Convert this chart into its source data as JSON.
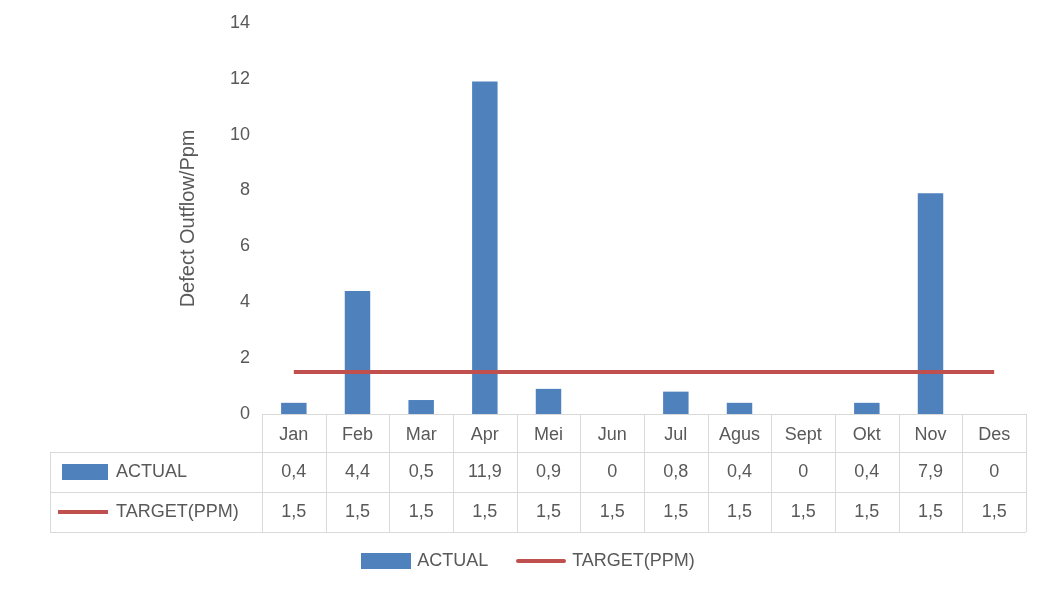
{
  "chart_data": {
    "type": "bar",
    "ylabel": "Defect Outflow/Ppm",
    "categories": [
      "Jan",
      "Feb",
      "Mar",
      "Apr",
      "Mei",
      "Jun",
      "Jul",
      "Agus",
      "Sept",
      "Okt",
      "Nov",
      "Des"
    ],
    "series": [
      {
        "name": "ACTUAL",
        "color": "#4f81bd",
        "values": [
          0.4,
          4.4,
          0.5,
          11.9,
          0.9,
          0,
          0.8,
          0.4,
          0,
          0.4,
          7.9,
          0
        ],
        "value_labels": [
          "0,4",
          "4,4",
          "0,5",
          "11,9",
          "0,9",
          "0",
          "0,8",
          "0,4",
          "0",
          "0,4",
          "7,9",
          "0"
        ]
      },
      {
        "name": "TARGET(PPM)",
        "type": "line",
        "color": "#c0504d",
        "values": [
          1.5,
          1.5,
          1.5,
          1.5,
          1.5,
          1.5,
          1.5,
          1.5,
          1.5,
          1.5,
          1.5,
          1.5
        ],
        "value_labels": [
          "1,5",
          "1,5",
          "1,5",
          "1,5",
          "1,5",
          "1,5",
          "1,5",
          "1,5",
          "1,5",
          "1,5",
          "1,5",
          "1,5"
        ]
      }
    ],
    "ylim": [
      0,
      14
    ],
    "yticks": [
      0,
      2,
      4,
      6,
      8,
      10,
      12,
      14
    ],
    "grid": false,
    "legend": "bottom"
  }
}
